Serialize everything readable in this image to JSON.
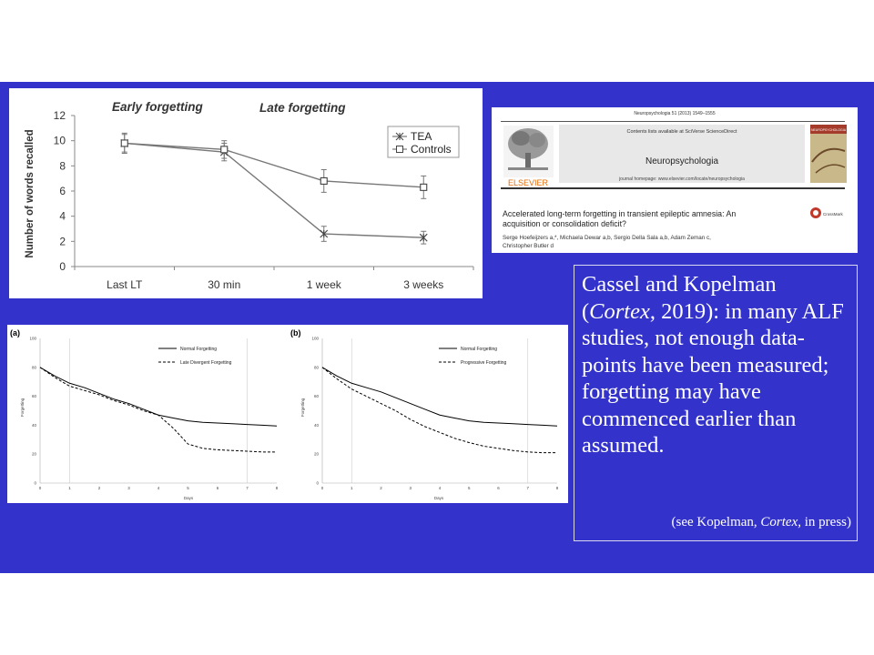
{
  "chart_data": [
    {
      "type": "line",
      "annotations": [
        "Early forgetting",
        "Late forgetting"
      ],
      "ylabel": "Number of words recalled",
      "xlabel": "",
      "categories": [
        "Last LT",
        "30 min",
        "1 week",
        "3 weeks"
      ],
      "ylim": [
        0,
        12
      ],
      "yticks": [
        "0",
        "2",
        "4",
        "6",
        "8",
        "10",
        "12"
      ],
      "series": [
        {
          "name": "TEA",
          "values": [
            9.8,
            9.1,
            2.6,
            2.3
          ],
          "err": [
            0.8,
            0.7,
            0.6,
            0.5
          ]
        },
        {
          "name": "Controls",
          "values": [
            9.8,
            9.3,
            6.8,
            6.3
          ],
          "err": [
            0.7,
            0.7,
            0.9,
            0.9
          ]
        }
      ],
      "legend": "top-right",
      "colors": {
        "line": "#777777"
      }
    },
    {
      "type": "line",
      "panel_label": "(a)",
      "xlabel": "Days",
      "ylabel": "Forgetting",
      "xlim": [
        0,
        8
      ],
      "ylim": [
        0,
        100
      ],
      "xticks": [
        "0",
        "1",
        "2",
        "3",
        "4",
        "5",
        "6",
        "7",
        "8"
      ],
      "yticks": [
        "0",
        "20",
        "40",
        "60",
        "80",
        "100"
      ],
      "vlines": [
        1,
        7
      ],
      "x": [
        0,
        0.5,
        1,
        1.5,
        2,
        2.5,
        3,
        3.5,
        4,
        4.5,
        5,
        5.5,
        6,
        6.5,
        7,
        7.5,
        8
      ],
      "series": [
        {
          "name": "Normal Forgetting",
          "style": "solid",
          "values": [
            80,
            74,
            69,
            66,
            62,
            58,
            55,
            51,
            47,
            45,
            43,
            42,
            41.5,
            41,
            40.5,
            40,
            39.5
          ]
        },
        {
          "name": "Late Divergent Forgetting",
          "style": "dashed",
          "values": [
            80,
            73,
            67,
            64,
            61,
            57,
            54,
            50,
            47,
            38,
            27,
            24,
            23,
            22.5,
            22,
            21.5,
            21.5
          ]
        }
      ],
      "legend": "top-right"
    },
    {
      "type": "line",
      "panel_label": "(b)",
      "xlabel": "Days",
      "ylabel": "Forgetting",
      "xlim": [
        0,
        8
      ],
      "ylim": [
        0,
        100
      ],
      "xticks": [
        "0",
        "1",
        "2",
        "3",
        "4",
        "5",
        "6",
        "7",
        "8"
      ],
      "yticks": [
        "0",
        "20",
        "40",
        "60",
        "80",
        "100"
      ],
      "vlines": [
        1,
        7
      ],
      "x": [
        0,
        0.5,
        1,
        1.5,
        2,
        2.5,
        3,
        3.5,
        4,
        4.5,
        5,
        5.5,
        6,
        6.5,
        7,
        7.5,
        8
      ],
      "series": [
        {
          "name": "Normal Forgetting",
          "style": "solid",
          "values": [
            80,
            74,
            69,
            66,
            63,
            59,
            55,
            51,
            47,
            45,
            43,
            42,
            41.5,
            41,
            40.5,
            40,
            39.5
          ]
        },
        {
          "name": "Progressive Forgetting",
          "style": "dashed",
          "values": [
            80,
            72,
            65,
            60,
            55,
            50,
            44,
            39,
            35,
            31,
            28,
            25.5,
            24,
            22.5,
            21.5,
            21,
            21
          ]
        }
      ],
      "legend": "top-right"
    }
  ],
  "paper": {
    "citation": "Neuropsychologia 51 (2013) 1549–1555",
    "contents_line": "Contents lists available at SciVerse ScienceDirect",
    "journal": "Neuropsychologia",
    "homepage": "journal homepage: www.elsevier.com/locate/neuropsychologia",
    "publisher": "ELSEVIER",
    "cover_title": "NEUROPSYCHOLOGIA",
    "crossmark": "CrossMark",
    "title_line1": "Accelerated long-term forgetting in transient epileptic amnesia: An",
    "title_line2": "acquisition or consolidation deficit?",
    "authors_line1": "Serge Hoefeijzers a,*, Michaela Dewar a,b, Sergio Della Sala a,b, Adam Zeman c,",
    "authors_line2": "Christopher Butler d"
  },
  "textbox": {
    "pre": "Cassel and Kopelman (",
    "journal_italic": "Cortex",
    "post": ", 2019): in many ALF studies, not enough data-points have been measured; forgetting may have commenced earlier than assumed.",
    "note_pre": "(see Kopelman, ",
    "note_italic": "Cortex,",
    "note_post": " in press)"
  }
}
